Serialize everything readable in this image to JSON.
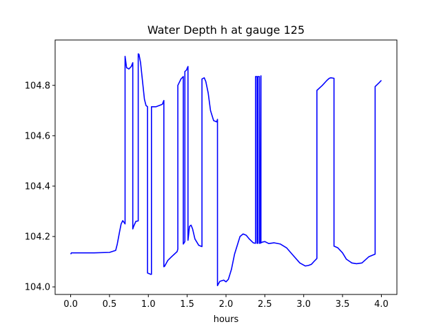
{
  "chart_data": {
    "type": "line",
    "title": "Water Depth h at gauge 125",
    "xlabel": "hours",
    "ylabel": "",
    "xlim": [
      -0.2,
      4.2
    ],
    "ylim": [
      103.97,
      104.98
    ],
    "xticks": [
      0.0,
      0.5,
      1.0,
      1.5,
      2.0,
      2.5,
      3.0,
      3.5,
      4.0
    ],
    "xtick_labels": [
      "0.0",
      "0.5",
      "1.0",
      "1.5",
      "2.0",
      "2.5",
      "3.0",
      "3.5",
      "4.0"
    ],
    "yticks": [
      104.0,
      104.2,
      104.4,
      104.6,
      104.8
    ],
    "ytick_labels": [
      "104.0",
      "104.2",
      "104.4",
      "104.6",
      "104.8"
    ],
    "grid": false,
    "series": [
      {
        "color": "#0000ff",
        "x": [
          0.0,
          0.01,
          0.3,
          0.5,
          0.58,
          0.6,
          0.63,
          0.65,
          0.67,
          0.69,
          0.7,
          0.7,
          0.72,
          0.75,
          0.78,
          0.8,
          0.8,
          0.81,
          0.84,
          0.87,
          0.87,
          0.88,
          0.9,
          0.92,
          0.95,
          0.97,
          0.99,
          0.99,
          1.03,
          1.04,
          1.04,
          1.1,
          1.14,
          1.18,
          1.2,
          1.2,
          1.21,
          1.25,
          1.3,
          1.37,
          1.38,
          1.38,
          1.42,
          1.45,
          1.45,
          1.47,
          1.47,
          1.49,
          1.51,
          1.51,
          1.53,
          1.55,
          1.57,
          1.6,
          1.65,
          1.69,
          1.69,
          1.72,
          1.74,
          1.77,
          1.8,
          1.84,
          1.88,
          1.89,
          1.89,
          1.92,
          1.97,
          2.0,
          2.03,
          2.07,
          2.11,
          2.18,
          2.22,
          2.26,
          2.3,
          2.35,
          2.38,
          2.38,
          2.4,
          2.4,
          2.41,
          2.41,
          2.43,
          2.43,
          2.44,
          2.45,
          2.45,
          2.47,
          2.5,
          2.55,
          2.62,
          2.7,
          2.78,
          2.85,
          2.95,
          3.02,
          3.06,
          3.1,
          3.13,
          3.17,
          3.17,
          3.24,
          3.3,
          3.33,
          3.35,
          3.39,
          3.39,
          3.44,
          3.5,
          3.55,
          3.62,
          3.68,
          3.75,
          3.84,
          3.92,
          3.92,
          3.97,
          4.0
        ],
        "y": [
          104.13,
          104.135,
          104.135,
          104.137,
          104.145,
          104.17,
          104.22,
          104.25,
          104.263,
          104.255,
          104.25,
          104.915,
          104.87,
          104.865,
          104.875,
          104.89,
          104.23,
          104.24,
          104.26,
          104.262,
          104.925,
          104.923,
          104.89,
          104.83,
          104.745,
          104.72,
          104.715,
          104.055,
          104.05,
          104.05,
          104.715,
          104.715,
          104.72,
          104.725,
          104.74,
          104.08,
          104.082,
          104.105,
          104.12,
          104.14,
          104.15,
          104.8,
          104.825,
          104.835,
          104.17,
          104.18,
          104.855,
          104.86,
          104.875,
          104.185,
          104.24,
          104.245,
          104.23,
          104.19,
          104.165,
          104.16,
          104.825,
          104.83,
          104.815,
          104.77,
          104.7,
          104.66,
          104.655,
          104.665,
          104.005,
          104.022,
          104.027,
          104.02,
          104.03,
          104.07,
          104.13,
          104.2,
          104.21,
          104.205,
          104.19,
          104.175,
          104.173,
          104.835,
          104.835,
          104.173,
          104.173,
          104.835,
          104.835,
          104.173,
          104.173,
          104.838,
          104.175,
          104.178,
          104.18,
          104.172,
          104.175,
          104.17,
          104.155,
          104.13,
          104.095,
          104.083,
          104.085,
          104.09,
          104.1,
          104.113,
          104.78,
          104.8,
          104.82,
          104.828,
          104.83,
          104.828,
          104.162,
          104.155,
          104.135,
          104.11,
          104.095,
          104.092,
          104.095,
          104.12,
          104.13,
          104.795,
          104.81,
          104.82
        ]
      }
    ]
  }
}
